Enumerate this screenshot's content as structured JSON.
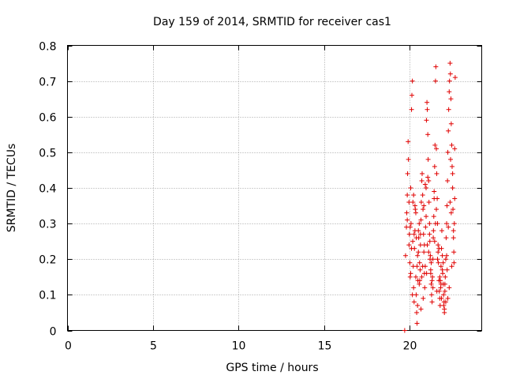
{
  "chart_data": {
    "type": "scatter",
    "title": "Day 159 of 2014, SRMTID for receiver cas1",
    "xlabel": "GPS time / hours",
    "ylabel": "SRMTID / TECUs",
    "xlim": [
      0,
      24.2
    ],
    "ylim": [
      0,
      0.8
    ],
    "xticks": [
      "0",
      "5",
      "10",
      "15",
      "20"
    ],
    "yticks": [
      "0",
      "0.1",
      "0.2",
      "0.3",
      "0.4",
      "0.5",
      "0.6",
      "0.7",
      "0.8"
    ],
    "grid": true,
    "marker": "+",
    "color": "#e00000",
    "x": [
      19.7,
      19.75,
      19.8,
      19.82,
      19.85,
      19.87,
      19.9,
      19.92,
      19.95,
      19.97,
      20.0,
      20.02,
      20.05,
      20.07,
      20.1,
      20.12,
      20.15,
      20.17,
      20.2,
      20.22,
      20.25,
      20.27,
      20.3,
      20.32,
      20.35,
      20.37,
      20.4,
      20.42,
      20.45,
      20.47,
      20.5,
      20.52,
      20.55,
      20.57,
      20.6,
      20.62,
      20.65,
      20.67,
      20.7,
      20.72,
      20.75,
      20.77,
      20.8,
      20.82,
      20.85,
      20.87,
      20.9,
      20.92,
      20.95,
      20.97,
      21.0,
      21.02,
      21.05,
      21.07,
      21.1,
      21.12,
      21.15,
      21.17,
      21.2,
      21.22,
      21.25,
      21.27,
      21.3,
      21.32,
      21.35,
      21.37,
      21.4,
      21.42,
      21.45,
      21.47,
      21.5,
      21.52,
      21.55,
      21.57,
      21.6,
      21.62,
      21.65,
      21.67,
      21.7,
      21.72,
      21.75,
      21.77,
      21.8,
      21.82,
      21.85,
      21.87,
      21.9,
      21.92,
      21.95,
      21.97,
      22.0,
      22.02,
      22.05,
      22.07,
      22.1,
      22.12,
      22.15,
      22.17,
      22.2,
      22.22,
      22.25,
      22.27,
      22.3,
      22.32,
      22.35,
      22.37,
      22.4,
      22.42,
      22.45,
      22.47,
      22.5,
      22.52,
      22.55,
      22.57,
      22.6,
      22.62,
      22.65,
      19.95,
      20.05,
      20.15,
      20.25,
      20.35,
      20.45,
      20.55,
      20.65,
      20.75,
      20.85,
      20.95,
      21.05,
      21.15,
      21.25,
      21.35,
      21.45,
      21.55,
      21.65,
      21.75,
      21.85,
      21.95,
      22.05,
      22.15,
      22.25,
      22.35,
      22.45,
      22.55,
      19.85,
      20.1,
      20.3,
      20.5,
      20.7,
      20.9,
      21.1,
      21.3,
      21.5,
      21.7,
      21.9,
      22.1,
      22.3,
      22.5,
      20.02,
      20.22,
      20.42,
      20.62,
      20.82,
      21.02,
      21.22,
      21.42,
      21.62,
      21.82,
      22.02,
      22.22,
      22.42,
      22.62,
      20.18,
      20.38,
      20.58,
      20.78,
      20.98,
      21.18,
      21.38,
      21.58,
      21.78,
      21.98,
      22.18,
      22.38,
      22.58
    ],
    "y": [
      0.0,
      0.21,
      0.29,
      0.33,
      0.38,
      0.44,
      0.53,
      0.48,
      0.36,
      0.27,
      0.19,
      0.15,
      0.4,
      0.3,
      0.62,
      0.66,
      0.7,
      0.25,
      0.18,
      0.12,
      0.08,
      0.23,
      0.28,
      0.34,
      0.15,
      0.1,
      0.05,
      0.02,
      0.07,
      0.14,
      0.22,
      0.26,
      0.3,
      0.19,
      0.17,
      0.24,
      0.31,
      0.36,
      0.42,
      0.44,
      0.38,
      0.34,
      0.27,
      0.22,
      0.16,
      0.12,
      0.18,
      0.29,
      0.4,
      0.59,
      0.64,
      0.62,
      0.55,
      0.48,
      0.42,
      0.36,
      0.3,
      0.25,
      0.21,
      0.17,
      0.13,
      0.1,
      0.08,
      0.15,
      0.2,
      0.26,
      0.32,
      0.39,
      0.46,
      0.52,
      0.7,
      0.74,
      0.51,
      0.44,
      0.37,
      0.3,
      0.24,
      0.19,
      0.14,
      0.11,
      0.09,
      0.07,
      0.12,
      0.18,
      0.23,
      0.28,
      0.21,
      0.16,
      0.13,
      0.1,
      0.08,
      0.06,
      0.11,
      0.15,
      0.2,
      0.26,
      0.3,
      0.35,
      0.42,
      0.5,
      0.56,
      0.62,
      0.67,
      0.7,
      0.75,
      0.72,
      0.65,
      0.58,
      0.52,
      0.46,
      0.4,
      0.34,
      0.28,
      0.22,
      0.3,
      0.37,
      0.71,
      0.24,
      0.16,
      0.1,
      0.27,
      0.33,
      0.21,
      0.13,
      0.06,
      0.18,
      0.24,
      0.32,
      0.43,
      0.27,
      0.19,
      0.12,
      0.25,
      0.34,
      0.22,
      0.15,
      0.09,
      0.19,
      0.13,
      0.21,
      0.29,
      0.36,
      0.18,
      0.26,
      0.31,
      0.23,
      0.35,
      0.28,
      0.15,
      0.41,
      0.22,
      0.14,
      0.3,
      0.23,
      0.17,
      0.08,
      0.12,
      0.44,
      0.29,
      0.38,
      0.18,
      0.27,
      0.35,
      0.24,
      0.16,
      0.37,
      0.2,
      0.13,
      0.05,
      0.09,
      0.33,
      0.51,
      0.36,
      0.26,
      0.14,
      0.09,
      0.16,
      0.2,
      0.28,
      0.11,
      0.14,
      0.07,
      0.17,
      0.48,
      0.19
    ]
  }
}
